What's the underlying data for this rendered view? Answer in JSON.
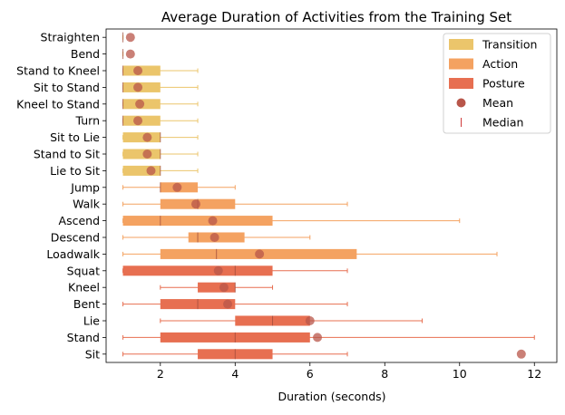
{
  "chart_data": {
    "type": "box-horizontal",
    "title": "Average Duration of Activities from the Training Set",
    "xlabel": "Duration (seconds)",
    "ylabel": "",
    "xlim": [
      0.55,
      12.6
    ],
    "xticks": [
      2,
      4,
      6,
      8,
      10,
      12
    ],
    "grid": false,
    "legend_position": "top-right",
    "groups": [
      {
        "name": "Transition",
        "color": "#EBC56B"
      },
      {
        "name": "Action",
        "color": "#F4A261"
      },
      {
        "name": "Posture",
        "color": "#E76F51"
      }
    ],
    "legend": [
      "Transition",
      "Action",
      "Posture",
      "Mean",
      "Median"
    ],
    "mean_color": "#B8564A",
    "categories": [
      {
        "label": "Straighten",
        "group": "Transition",
        "whisker_low": 1,
        "q1": 1,
        "median": 1,
        "q3": 1,
        "whisker_high": 1,
        "mean": 1.2
      },
      {
        "label": "Bend",
        "group": "Transition",
        "whisker_low": 1,
        "q1": 1,
        "median": 1,
        "q3": 1,
        "whisker_high": 1,
        "mean": 1.2
      },
      {
        "label": "Stand to Kneel",
        "group": "Transition",
        "whisker_low": 1,
        "q1": 1,
        "median": 1,
        "q3": 2,
        "whisker_high": 3,
        "mean": 1.4
      },
      {
        "label": "Sit to Stand",
        "group": "Transition",
        "whisker_low": 1,
        "q1": 1,
        "median": 1,
        "q3": 2,
        "whisker_high": 3,
        "mean": 1.4
      },
      {
        "label": "Kneel to Stand",
        "group": "Transition",
        "whisker_low": 1,
        "q1": 1,
        "median": 1,
        "q3": 2,
        "whisker_high": 3,
        "mean": 1.45
      },
      {
        "label": "Turn",
        "group": "Transition",
        "whisker_low": 1,
        "q1": 1,
        "median": 1,
        "q3": 2,
        "whisker_high": 3,
        "mean": 1.4
      },
      {
        "label": "Sit to Lie",
        "group": "Transition",
        "whisker_low": 1,
        "q1": 1,
        "median": 2,
        "q3": 2,
        "whisker_high": 3,
        "mean": 1.65
      },
      {
        "label": "Stand to Sit",
        "group": "Transition",
        "whisker_low": 1,
        "q1": 1,
        "median": 2,
        "q3": 2,
        "whisker_high": 3,
        "mean": 1.65
      },
      {
        "label": "Lie to Sit",
        "group": "Transition",
        "whisker_low": 1,
        "q1": 1,
        "median": 2,
        "q3": 2,
        "whisker_high": 3,
        "mean": 1.75
      },
      {
        "label": "Jump",
        "group": "Action",
        "whisker_low": 1,
        "q1": 2,
        "median": 2,
        "q3": 3,
        "whisker_high": 4,
        "mean": 2.45
      },
      {
        "label": "Walk",
        "group": "Action",
        "whisker_low": 1,
        "q1": 2,
        "median": 3,
        "q3": 4,
        "whisker_high": 7,
        "mean": 2.95
      },
      {
        "label": "Ascend",
        "group": "Action",
        "whisker_low": 1,
        "q1": 1,
        "median": 2,
        "q3": 5,
        "whisker_high": 10,
        "mean": 3.4
      },
      {
        "label": "Descend",
        "group": "Action",
        "whisker_low": 1,
        "q1": 2.75,
        "median": 3,
        "q3": 4.25,
        "whisker_high": 6,
        "mean": 3.45
      },
      {
        "label": "Loadwalk",
        "group": "Action",
        "whisker_low": 1,
        "q1": 2,
        "median": 3.5,
        "q3": 7.25,
        "whisker_high": 11,
        "mean": 4.65
      },
      {
        "label": "Squat",
        "group": "Posture",
        "whisker_low": 1,
        "q1": 1,
        "median": 4,
        "q3": 5,
        "whisker_high": 7,
        "mean": 3.55
      },
      {
        "label": "Kneel",
        "group": "Posture",
        "whisker_low": 2,
        "q1": 3,
        "median": 4,
        "q3": 4,
        "whisker_high": 5,
        "mean": 3.7
      },
      {
        "label": "Bent",
        "group": "Posture",
        "whisker_low": 1,
        "q1": 2,
        "median": 3,
        "q3": 4,
        "whisker_high": 7,
        "mean": 3.8
      },
      {
        "label": "Lie",
        "group": "Posture",
        "whisker_low": 2,
        "q1": 4,
        "median": 5,
        "q3": 6,
        "whisker_high": 9,
        "mean": 6.0
      },
      {
        "label": "Stand",
        "group": "Posture",
        "whisker_low": 1,
        "q1": 2,
        "median": 4,
        "q3": 6,
        "whisker_high": 12,
        "mean": 6.2
      },
      {
        "label": "Sit",
        "group": "Posture",
        "whisker_low": 1,
        "q1": 3,
        "median": 4,
        "q3": 5,
        "whisker_high": 7,
        "mean": 11.65
      }
    ]
  }
}
